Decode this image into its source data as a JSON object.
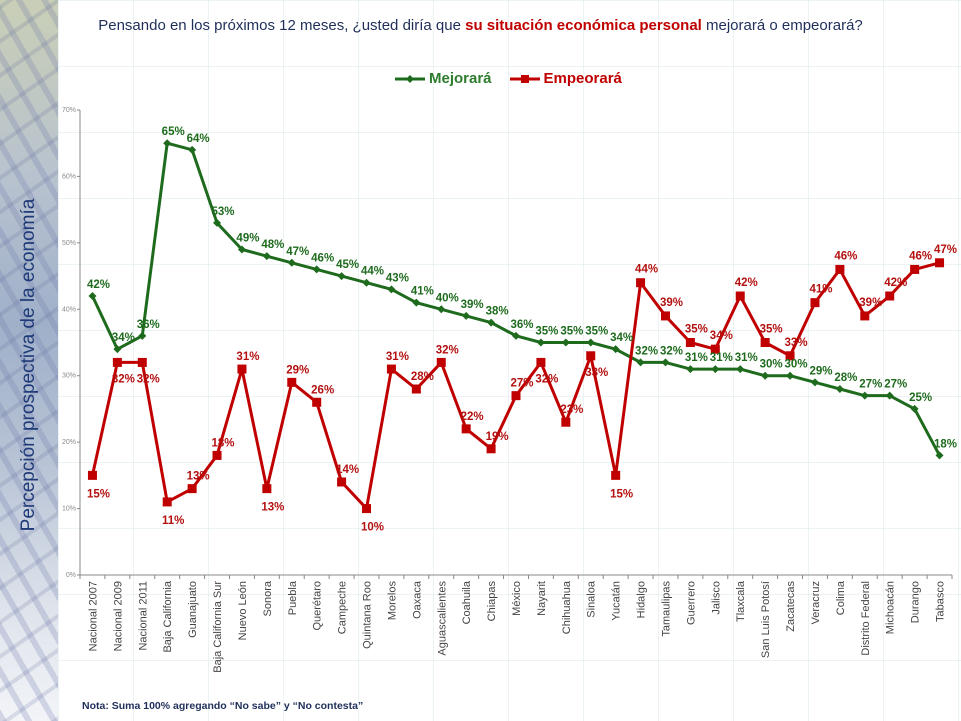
{
  "sidebar": {
    "title": "Percepción prospectiva de la economía"
  },
  "header": {
    "title_part1": "Pensando en los próximos 12 meses, ¿usted diría que ",
    "title_highlight": "su situación económica personal",
    "title_part2": " mejorará o empeorará?"
  },
  "footer": {
    "note": "Nota: Suma 100% agregando “No sabe” y “No contesta”"
  },
  "chart_data": {
    "type": "line",
    "title": "Pensando en los próximos 12 meses, ¿usted diría que su situación económica personal mejorará o empeorará?",
    "xlabel": "",
    "ylabel": "",
    "ylim": [
      0,
      70
    ],
    "yticks": [
      0,
      10,
      20,
      30,
      40,
      50,
      60,
      70
    ],
    "ytick_format": "{v}%",
    "grid": false,
    "legend_position": "top-center",
    "categories": [
      "Nacional 2007",
      "Nacional 2009",
      "Nacional 2011",
      "Baja California",
      "Guanajuato",
      "Baja California Sur",
      "Nuevo León",
      "Sonora",
      "Puebla",
      "Querétaro",
      "Campeche",
      "Quintana Roo",
      "Morelos",
      "Oaxaca",
      "Aguascalientes",
      "Coahuila",
      "Chiapas",
      "México",
      "Nayarit",
      "Chihuahua",
      "Sinaloa",
      "Yucatán",
      "Hidalgo",
      "Tamaulipas",
      "Guerrero",
      "Jalisco",
      "Tlaxcala",
      "San Luis Potosí",
      "Zacatecas",
      "Veracruz",
      "Colima",
      "Distrito Federal",
      "Michoacán",
      "Durango",
      "Tabasco"
    ],
    "series": [
      {
        "name": "Mejorará",
        "color": "#1e6b1e",
        "marker": "diamond",
        "values": [
          42,
          34,
          36,
          65,
          64,
          53,
          49,
          48,
          47,
          46,
          45,
          44,
          43,
          41,
          40,
          39,
          38,
          36,
          35,
          35,
          35,
          34,
          32,
          32,
          31,
          31,
          31,
          30,
          30,
          29,
          28,
          27,
          27,
          25,
          18
        ]
      },
      {
        "name": "Empeorará",
        "color": "#c00000",
        "marker": "square",
        "values": [
          15,
          32,
          32,
          11,
          13,
          18,
          31,
          13,
          29,
          26,
          14,
          10,
          31,
          28,
          32,
          22,
          19,
          27,
          32,
          23,
          33,
          15,
          44,
          39,
          35,
          34,
          42,
          35,
          33,
          41,
          46,
          39,
          42,
          46,
          47
        ]
      }
    ]
  }
}
